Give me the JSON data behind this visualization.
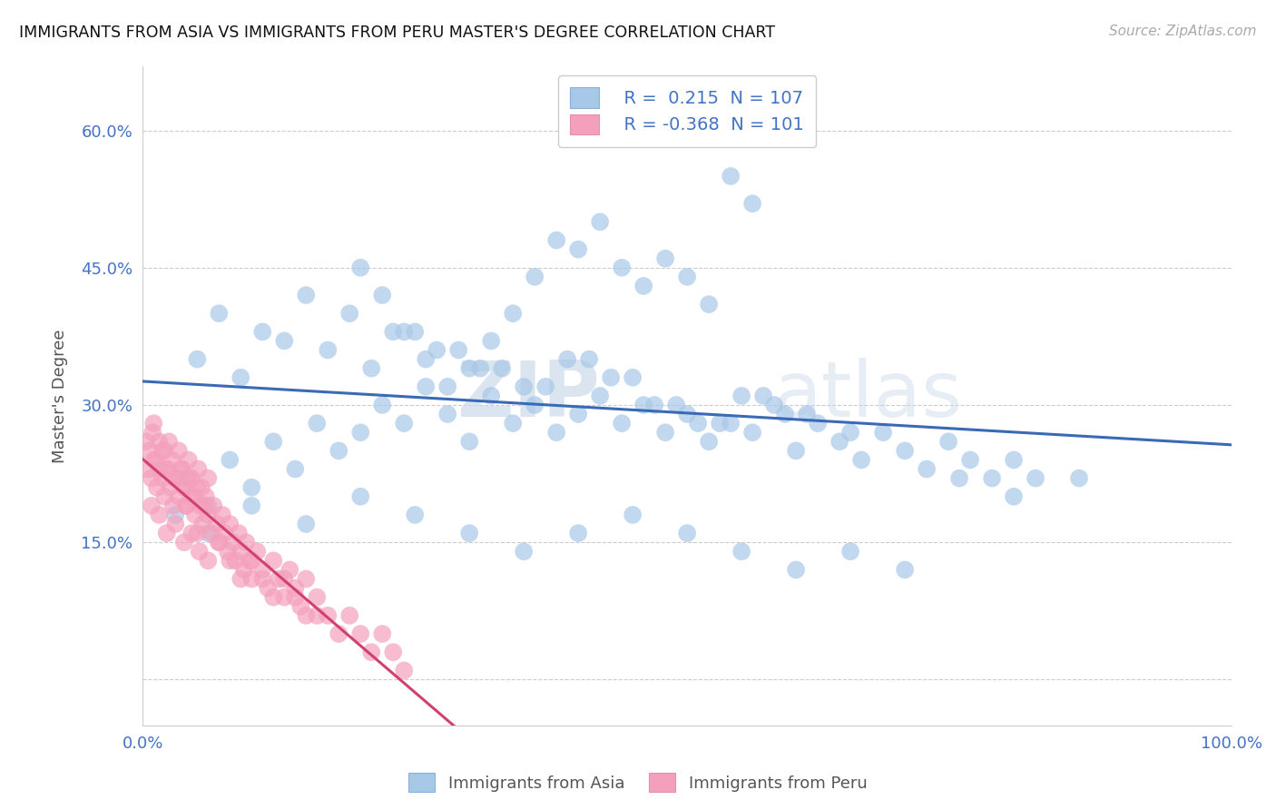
{
  "title": "IMMIGRANTS FROM ASIA VS IMMIGRANTS FROM PERU MASTER'S DEGREE CORRELATION CHART",
  "source": "Source: ZipAtlas.com",
  "ylabel": "Master's Degree",
  "y_ticks": [
    0.0,
    0.15,
    0.3,
    0.45,
    0.6
  ],
  "y_tick_labels": [
    "",
    "15.0%",
    "30.0%",
    "45.0%",
    "60.0%"
  ],
  "x_range": [
    0.0,
    1.0
  ],
  "y_range": [
    -0.05,
    0.67
  ],
  "legend_r_asia": "R =  0.215",
  "legend_n_asia": "N = 107",
  "legend_r_peru": "R = -0.368",
  "legend_n_peru": "N = 101",
  "color_asia": "#a8c8e8",
  "color_peru": "#f4a0bc",
  "line_color_asia": "#3a6ab5",
  "line_color_peru": "#d04070",
  "watermark_zip": "ZIP",
  "watermark_atlas": "atlas",
  "legend_label_asia": "Immigrants from Asia",
  "legend_label_peru": "Immigrants from Peru",
  "asia_x": [
    0.04,
    0.06,
    0.08,
    0.1,
    0.12,
    0.14,
    0.16,
    0.18,
    0.2,
    0.22,
    0.24,
    0.26,
    0.28,
    0.3,
    0.32,
    0.34,
    0.36,
    0.38,
    0.4,
    0.42,
    0.44,
    0.46,
    0.48,
    0.5,
    0.52,
    0.54,
    0.56,
    0.58,
    0.6,
    0.62,
    0.64,
    0.66,
    0.68,
    0.7,
    0.72,
    0.74,
    0.76,
    0.78,
    0.8,
    0.82,
    0.05,
    0.09,
    0.13,
    0.17,
    0.21,
    0.25,
    0.29,
    0.33,
    0.37,
    0.41,
    0.45,
    0.49,
    0.53,
    0.57,
    0.61,
    0.65,
    0.07,
    0.11,
    0.15,
    0.19,
    0.23,
    0.27,
    0.31,
    0.35,
    0.39,
    0.43,
    0.47,
    0.51,
    0.55,
    0.59,
    0.03,
    0.06,
    0.1,
    0.15,
    0.2,
    0.25,
    0.3,
    0.35,
    0.4,
    0.45,
    0.5,
    0.55,
    0.6,
    0.65,
    0.7,
    0.75,
    0.8,
    0.86,
    0.4,
    0.42,
    0.44,
    0.46,
    0.48,
    0.5,
    0.52,
    0.54,
    0.56,
    0.38,
    0.36,
    0.34,
    0.32,
    0.3,
    0.28,
    0.26,
    0.24,
    0.22,
    0.2
  ],
  "asia_y": [
    0.22,
    0.19,
    0.24,
    0.21,
    0.26,
    0.23,
    0.28,
    0.25,
    0.27,
    0.3,
    0.28,
    0.32,
    0.29,
    0.26,
    0.31,
    0.28,
    0.3,
    0.27,
    0.29,
    0.31,
    0.28,
    0.3,
    0.27,
    0.29,
    0.26,
    0.28,
    0.27,
    0.3,
    0.25,
    0.28,
    0.26,
    0.24,
    0.27,
    0.25,
    0.23,
    0.26,
    0.24,
    0.22,
    0.24,
    0.22,
    0.35,
    0.33,
    0.37,
    0.36,
    0.34,
    0.38,
    0.36,
    0.34,
    0.32,
    0.35,
    0.33,
    0.3,
    0.28,
    0.31,
    0.29,
    0.27,
    0.4,
    0.38,
    0.42,
    0.4,
    0.38,
    0.36,
    0.34,
    0.32,
    0.35,
    0.33,
    0.3,
    0.28,
    0.31,
    0.29,
    0.18,
    0.16,
    0.19,
    0.17,
    0.2,
    0.18,
    0.16,
    0.14,
    0.16,
    0.18,
    0.16,
    0.14,
    0.12,
    0.14,
    0.12,
    0.22,
    0.2,
    0.22,
    0.47,
    0.5,
    0.45,
    0.43,
    0.46,
    0.44,
    0.41,
    0.55,
    0.52,
    0.48,
    0.44,
    0.4,
    0.37,
    0.34,
    0.32,
    0.35,
    0.38,
    0.42,
    0.45
  ],
  "peru_x": [
    0.005,
    0.008,
    0.01,
    0.013,
    0.015,
    0.018,
    0.02,
    0.023,
    0.025,
    0.028,
    0.03,
    0.033,
    0.035,
    0.038,
    0.04,
    0.043,
    0.045,
    0.048,
    0.05,
    0.053,
    0.055,
    0.058,
    0.06,
    0.063,
    0.065,
    0.068,
    0.07,
    0.073,
    0.075,
    0.078,
    0.08,
    0.083,
    0.085,
    0.088,
    0.09,
    0.093,
    0.095,
    0.098,
    0.1,
    0.105,
    0.11,
    0.115,
    0.12,
    0.125,
    0.13,
    0.135,
    0.14,
    0.145,
    0.15,
    0.16,
    0.003,
    0.006,
    0.009,
    0.012,
    0.015,
    0.018,
    0.021,
    0.024,
    0.027,
    0.03,
    0.033,
    0.036,
    0.039,
    0.042,
    0.045,
    0.048,
    0.051,
    0.054,
    0.057,
    0.06,
    0.008,
    0.015,
    0.022,
    0.03,
    0.038,
    0.045,
    0.052,
    0.06,
    0.07,
    0.08,
    0.09,
    0.1,
    0.11,
    0.12,
    0.13,
    0.14,
    0.15,
    0.16,
    0.17,
    0.18,
    0.19,
    0.2,
    0.21,
    0.22,
    0.23,
    0.24,
    0.01,
    0.02,
    0.03,
    0.04,
    0.05
  ],
  "peru_y": [
    0.23,
    0.22,
    0.24,
    0.21,
    0.23,
    0.22,
    0.2,
    0.23,
    0.21,
    0.19,
    0.22,
    0.2,
    0.23,
    0.21,
    0.19,
    0.22,
    0.2,
    0.18,
    0.21,
    0.19,
    0.17,
    0.2,
    0.18,
    0.16,
    0.19,
    0.17,
    0.15,
    0.18,
    0.16,
    0.14,
    0.17,
    0.15,
    0.13,
    0.16,
    0.14,
    0.12,
    0.15,
    0.13,
    0.11,
    0.14,
    0.12,
    0.1,
    0.13,
    0.11,
    0.09,
    0.12,
    0.1,
    0.08,
    0.11,
    0.07,
    0.26,
    0.25,
    0.27,
    0.24,
    0.26,
    0.25,
    0.23,
    0.26,
    0.24,
    0.22,
    0.25,
    0.23,
    0.21,
    0.24,
    0.22,
    0.2,
    0.23,
    0.21,
    0.19,
    0.22,
    0.19,
    0.18,
    0.16,
    0.17,
    0.15,
    0.16,
    0.14,
    0.13,
    0.15,
    0.13,
    0.11,
    0.13,
    0.11,
    0.09,
    0.11,
    0.09,
    0.07,
    0.09,
    0.07,
    0.05,
    0.07,
    0.05,
    0.03,
    0.05,
    0.03,
    0.01,
    0.28,
    0.25,
    0.22,
    0.19,
    0.16
  ]
}
